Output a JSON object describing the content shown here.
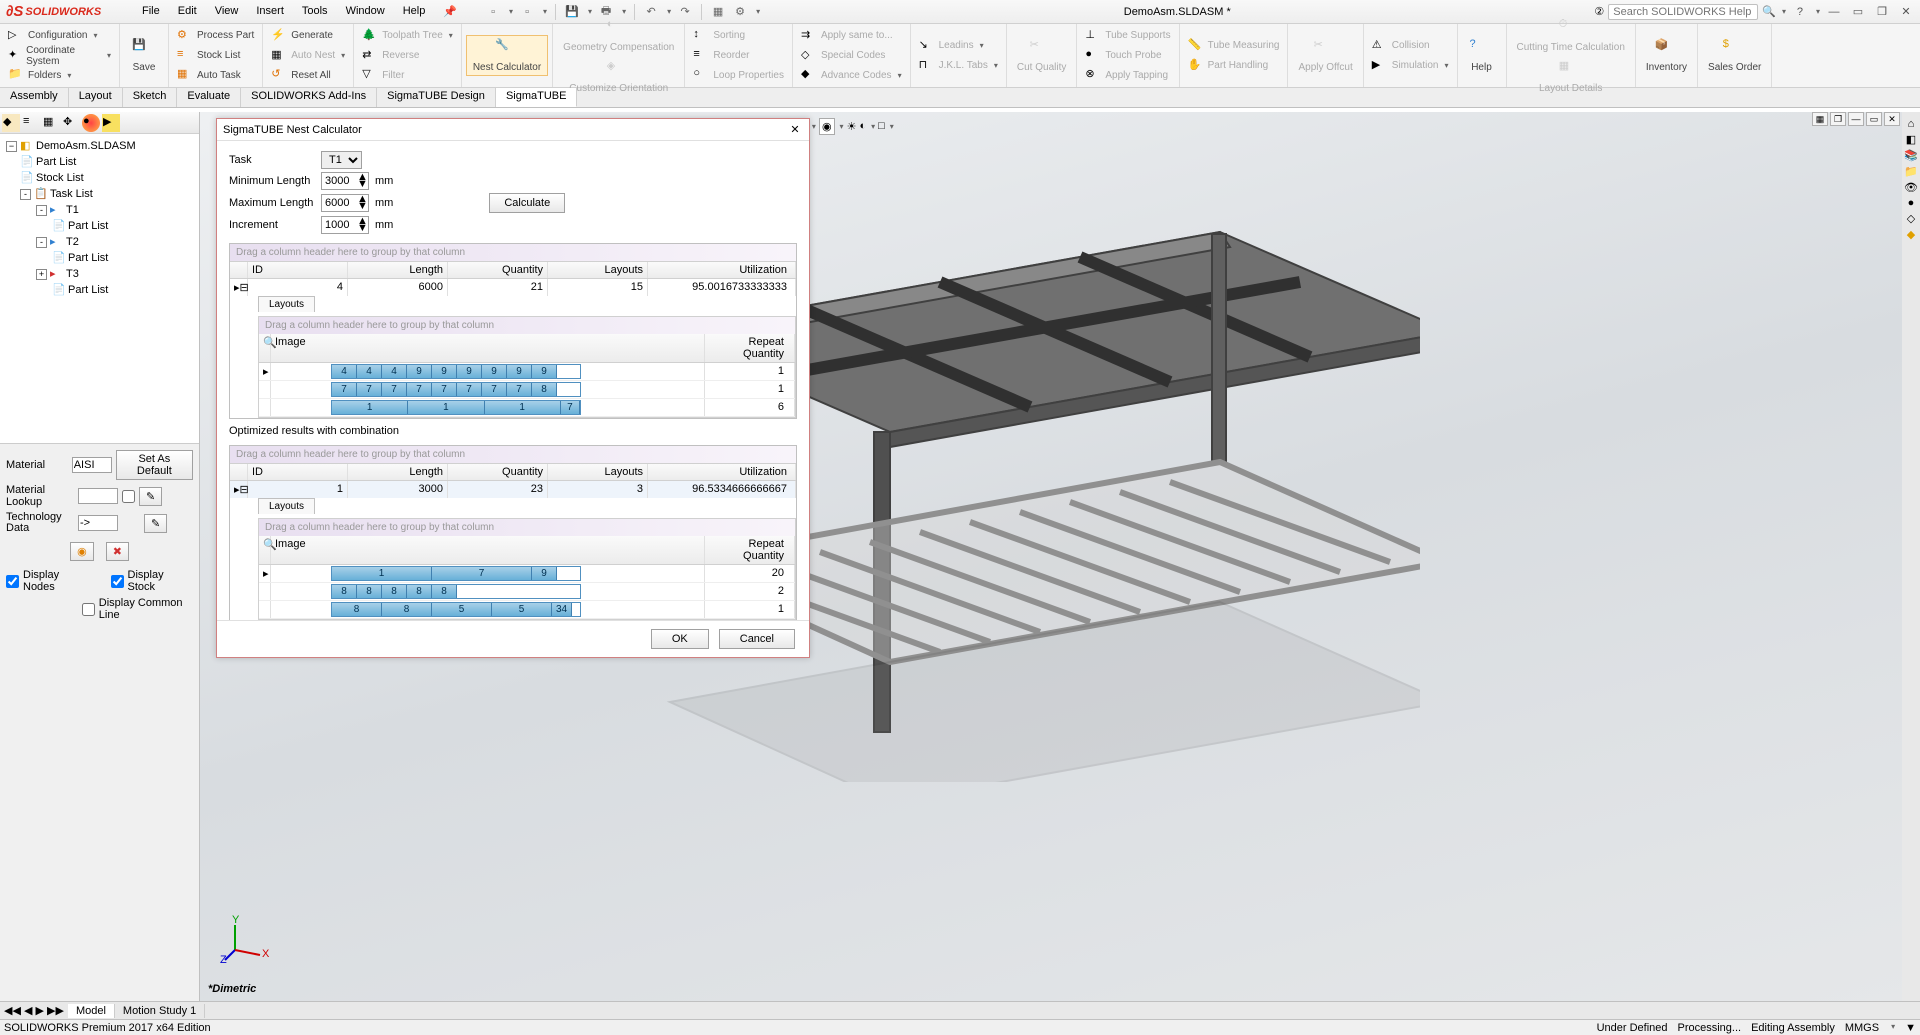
{
  "app": {
    "logo_text": "SOLIDWORKS",
    "document_title": "DemoAsm.SLDASM *",
    "search_placeholder": "Search SOLIDWORKS Help"
  },
  "menu": {
    "items": [
      "File",
      "Edit",
      "View",
      "Insert",
      "Tools",
      "Window",
      "Help"
    ]
  },
  "ribbon": {
    "left_items": [
      "Configuration",
      "Coordinate System",
      "Folders"
    ],
    "save": "Save",
    "process_part": "Process Part",
    "stock_list": "Stock List",
    "auto_task": "Auto Task",
    "generate": "Generate",
    "auto_nest": "Auto Nest",
    "reset_all": "Reset All",
    "toolpath_tree": "Toolpath Tree",
    "reverse": "Reverse",
    "filter": "Filter",
    "nest_calculator": "Nest Calculator",
    "geometry_comp": "Geometry Compensation",
    "customize_orient": "Customize Orientation",
    "sorting": "Sorting",
    "reorder": "Reorder",
    "loop_properties": "Loop Properties",
    "apply_same": "Apply same to...",
    "special_codes": "Special Codes",
    "advance_codes": "Advance Codes",
    "leadins": "Leadins",
    "jkl_tabs": "J.K.L. Tabs",
    "cut_quality": "Cut Quality",
    "tube_supports": "Tube Supports",
    "touch_probe": "Touch Probe",
    "apply_tapping": "Apply Tapping",
    "tube_measuring": "Tube Measuring",
    "part_handling": "Part Handling",
    "apply_offcut": "Apply Offcut",
    "collision": "Collision",
    "simulation": "Simulation",
    "help": "Help",
    "cutting_time": "Cutting Time Calculation",
    "layout_details": "Layout Details",
    "inventory": "Inventory",
    "sales_order": "Sales Order"
  },
  "cmd_tabs": [
    "Assembly",
    "Layout",
    "Sketch",
    "Evaluate",
    "SOLIDWORKS Add-Ins",
    "SigmaTUBE Design",
    "SigmaTUBE"
  ],
  "cmd_tab_active": 6,
  "tree": {
    "root": "DemoAsm.SLDASM",
    "items": [
      {
        "label": "Part List",
        "indent": 1
      },
      {
        "label": "Stock List",
        "indent": 1
      },
      {
        "label": "Task List",
        "indent": 1,
        "exp": "-"
      },
      {
        "label": "T1",
        "indent": 2,
        "exp": "-"
      },
      {
        "label": "Part List",
        "indent": 3
      },
      {
        "label": "T2",
        "indent": 2,
        "exp": "-"
      },
      {
        "label": "Part List",
        "indent": 3
      },
      {
        "label": "T3",
        "indent": 2,
        "exp": "+"
      },
      {
        "label": "Part List",
        "indent": 3
      }
    ]
  },
  "props": {
    "material_label": "Material",
    "material_value": "AISI",
    "set_default": "Set As Default",
    "lookup_label": "Material Lookup",
    "techdata_label": "Technology Data",
    "techdata_value": "->",
    "display_nodes": "Display Nodes",
    "display_stock": "Display Stock",
    "display_common": "Display Common Line"
  },
  "dialog": {
    "title": "SigmaTUBE Nest Calculator",
    "task_label": "Task",
    "task_value": "T1",
    "min_label": "Minimum Length",
    "min_value": "3000",
    "max_label": "Maximum Length",
    "max_value": "6000",
    "inc_label": "Increment",
    "inc_value": "1000",
    "unit": "mm",
    "calculate": "Calculate",
    "group_hint": "Drag a column header here to group by that column",
    "columns": {
      "id": "ID",
      "length": "Length",
      "quantity": "Quantity",
      "layouts": "Layouts",
      "utilization": "Utilization"
    },
    "top_row": {
      "id": "4",
      "length": "6000",
      "quantity": "21",
      "layouts": "15",
      "utilization": "95.0016733333333"
    },
    "layouts_tab": "Layouts",
    "sub_columns": {
      "image": "Image",
      "repeat": "Repeat Quantity"
    },
    "top_nests": [
      {
        "segs": [
          "4",
          "4",
          "4",
          "9",
          "9",
          "9",
          "9",
          "9",
          "9"
        ],
        "rq": "1"
      },
      {
        "segs": [
          "7",
          "7",
          "7",
          "7",
          "7",
          "7",
          "7",
          "7",
          "8"
        ],
        "rq": "1"
      },
      {
        "segs_wide": [
          "1",
          "1",
          "1",
          "7"
        ],
        "rq": "6"
      }
    ],
    "opt_label": "Optimized results with combination",
    "opt_row": {
      "id": "1",
      "length": "3000",
      "quantity": "23",
      "layouts": "3",
      "utilization": "96.5334666666667"
    },
    "opt_nests": [
      {
        "segs_wide": [
          "1",
          "7",
          "9"
        ],
        "rq": "20"
      },
      {
        "segs": [
          "8",
          "8",
          "8",
          "8",
          "8"
        ],
        "rq": "2"
      },
      {
        "segs_mixed": [
          "8",
          "8",
          "5",
          "5",
          "34"
        ],
        "rq": "1"
      }
    ],
    "ok": "OK",
    "cancel": "Cancel"
  },
  "bottom": {
    "model_tab": "Model",
    "motion_tab": "Motion Study 1",
    "dimetric": "*Dimetric"
  },
  "status": {
    "left": "SOLIDWORKS Premium 2017 x64 Edition",
    "under_defined": "Under Defined",
    "processing": "Processing...",
    "editing": "Editing Assembly",
    "units": "MMGS"
  },
  "colors": {
    "nest_fill": "#7bbde0",
    "nest_border": "#4080b0"
  }
}
